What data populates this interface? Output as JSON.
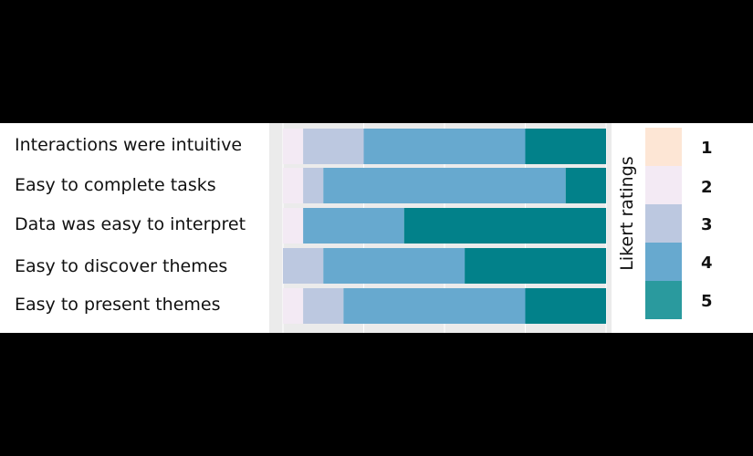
{
  "chart_data": {
    "type": "bar",
    "orientation": "horizontal",
    "stacked": true,
    "normalized": true,
    "categories": [
      "Interactions were intuitive",
      "Easy to complete tasks",
      "Data was easy to interpret",
      "Easy to discover themes",
      "Easy to present themes"
    ],
    "series": [
      {
        "name": "1",
        "color": "#fde6d5",
        "values": [
          0,
          0,
          0,
          0,
          0
        ]
      },
      {
        "name": "2",
        "color": "#f3eaf4",
        "values": [
          0.0625,
          0.0625,
          0.0625,
          0,
          0.0625
        ]
      },
      {
        "name": "3",
        "color": "#bcc8e0",
        "values": [
          0.1875,
          0.0625,
          0,
          0.125,
          0.125
        ]
      },
      {
        "name": "4",
        "color": "#67a9cf",
        "values": [
          0.5,
          0.75,
          0.3125,
          0.4375,
          0.5625
        ]
      },
      {
        "name": "5",
        "color": "#02818a",
        "values": [
          0.25,
          0.125,
          0.625,
          0.4375,
          0.25
        ]
      }
    ],
    "xlim": [
      0,
      1
    ],
    "xlabel": "",
    "ylabel": "",
    "grid": true,
    "legend": {
      "title": "Likert ratings",
      "position": "right",
      "entries": [
        "1",
        "2",
        "3",
        "4",
        "5"
      ],
      "colors": [
        "#fde6d5",
        "#f3eaf4",
        "#bcc8e0",
        "#67a9cf",
        "#2a9a9e"
      ]
    }
  }
}
